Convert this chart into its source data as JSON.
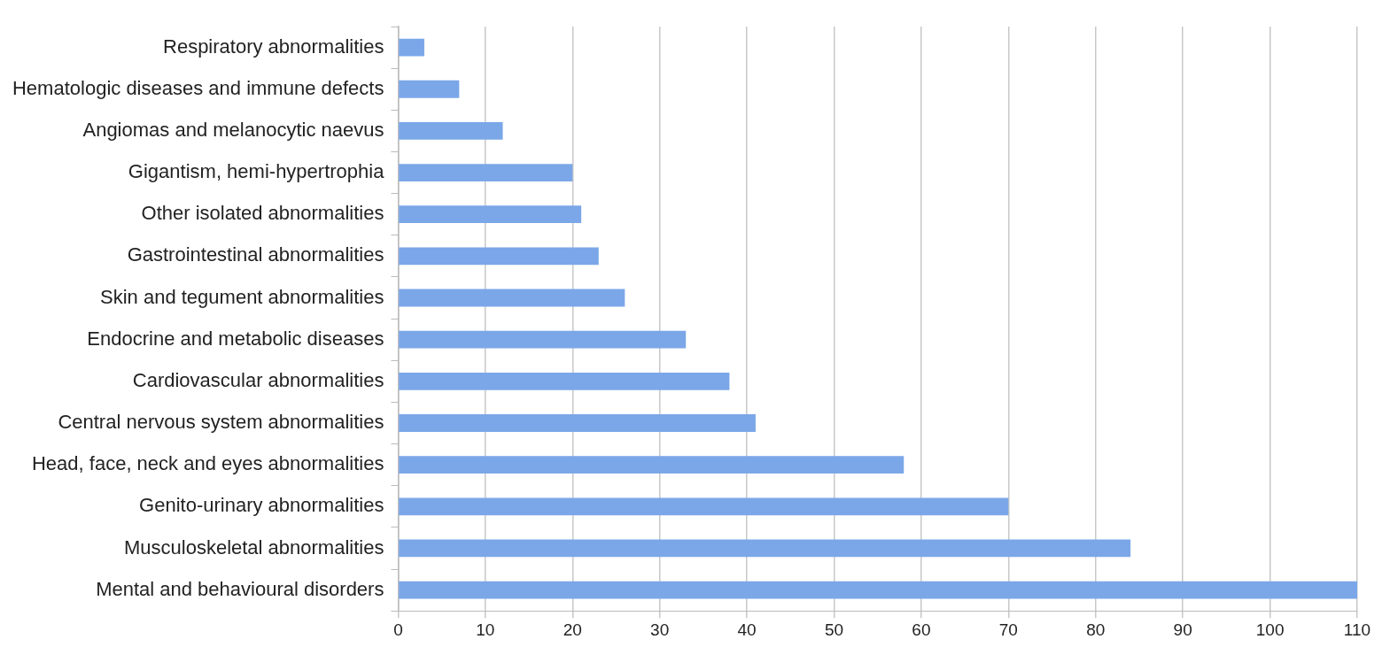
{
  "chart_data": {
    "type": "bar",
    "orientation": "horizontal",
    "categories": [
      "Respiratory abnormalities",
      "Hematologic diseases and immune defects",
      "Angiomas and melanocytic naevus",
      "Gigantism, hemi-hypertrophia",
      "Other isolated abnormalities",
      "Gastrointestinal abnormalities",
      "Skin and tegument abnormalities",
      "Endocrine and metabolic diseases",
      "Cardiovascular abnormalities",
      "Central nervous system abnormalities",
      "Head, face, neck and eyes abnormalities",
      "Genito-urinary abnormalities",
      "Musculoskeletal abnormalities",
      "Mental and behavioural disorders"
    ],
    "values": [
      3,
      7,
      12,
      20,
      21,
      23,
      26,
      33,
      38,
      41,
      58,
      70,
      84,
      110
    ],
    "color": "#7ba7e8",
    "xlim": [
      0,
      110
    ],
    "xticks": [
      0,
      10,
      20,
      30,
      40,
      50,
      60,
      70,
      80,
      90,
      100,
      110
    ],
    "grid": "x",
    "legend": false
  }
}
